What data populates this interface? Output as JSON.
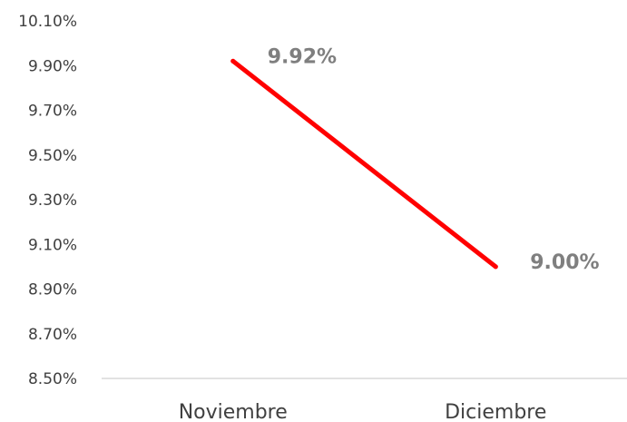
{
  "chart_data": {
    "type": "line",
    "title": "",
    "xlabel": "",
    "ylabel": "",
    "categories": [
      "Noviembre",
      "Diciembre"
    ],
    "series": [
      {
        "values": [
          9.92,
          9.0
        ],
        "labels": [
          "9.92%",
          "9.00%"
        ],
        "color": "#ff0000"
      }
    ],
    "yticks": [
      {
        "value": 10.1,
        "label": "10.10%"
      },
      {
        "value": 9.9,
        "label": "9.90%"
      },
      {
        "value": 9.7,
        "label": "9.70%"
      },
      {
        "value": 9.5,
        "label": "9.50%"
      },
      {
        "value": 9.3,
        "label": "9.30%"
      },
      {
        "value": 9.1,
        "label": "9.10%"
      },
      {
        "value": 8.9,
        "label": "8.90%"
      },
      {
        "value": 8.7,
        "label": "8.70%"
      },
      {
        "value": 8.5,
        "label": "8.50%"
      }
    ],
    "ylim": [
      8.5,
      10.1
    ],
    "grid": false,
    "legend": "none"
  }
}
